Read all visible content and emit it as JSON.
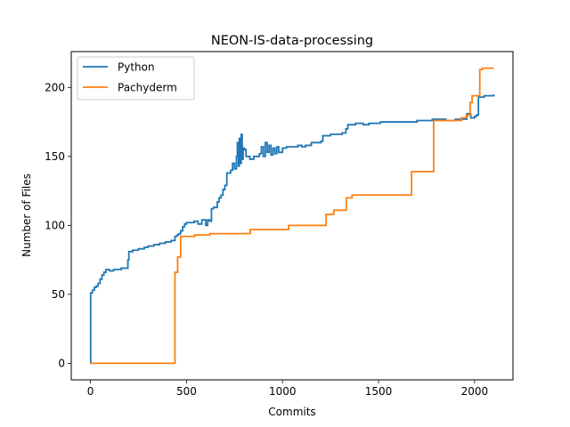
{
  "chart_data": {
    "type": "line",
    "title": "NEON-IS-data-processing",
    "xlabel": "Commits",
    "ylabel": "Number of Files",
    "xlim": [
      -100,
      2200
    ],
    "ylim": [
      -12,
      226
    ],
    "xticks": [
      0,
      500,
      1000,
      1500,
      2000
    ],
    "yticks": [
      0,
      50,
      100,
      150,
      200
    ],
    "grid": false,
    "legend_position": "upper-left",
    "series": [
      {
        "name": "Python",
        "color": "#1f77b4",
        "step": true,
        "points": [
          [
            0,
            0
          ],
          [
            1,
            51
          ],
          [
            10,
            53
          ],
          [
            20,
            55
          ],
          [
            30,
            56
          ],
          [
            40,
            58
          ],
          [
            50,
            61
          ],
          [
            60,
            64
          ],
          [
            70,
            66
          ],
          [
            80,
            68
          ],
          [
            100,
            67
          ],
          [
            120,
            68
          ],
          [
            140,
            68
          ],
          [
            160,
            69
          ],
          [
            180,
            69
          ],
          [
            195,
            75
          ],
          [
            200,
            81
          ],
          [
            220,
            82
          ],
          [
            250,
            83
          ],
          [
            280,
            84
          ],
          [
            300,
            85
          ],
          [
            330,
            86
          ],
          [
            360,
            87
          ],
          [
            390,
            88
          ],
          [
            410,
            88
          ],
          [
            420,
            89
          ],
          [
            430,
            89
          ],
          [
            440,
            92
          ],
          [
            450,
            93
          ],
          [
            460,
            94
          ],
          [
            470,
            96
          ],
          [
            480,
            99
          ],
          [
            490,
            101
          ],
          [
            500,
            102
          ],
          [
            520,
            102
          ],
          [
            540,
            103
          ],
          [
            560,
            101
          ],
          [
            580,
            104
          ],
          [
            600,
            100
          ],
          [
            610,
            104
          ],
          [
            620,
            103
          ],
          [
            630,
            112
          ],
          [
            640,
            113
          ],
          [
            660,
            117
          ],
          [
            670,
            120
          ],
          [
            680,
            122
          ],
          [
            690,
            126
          ],
          [
            700,
            129
          ],
          [
            710,
            138
          ],
          [
            730,
            140
          ],
          [
            740,
            145
          ],
          [
            750,
            141
          ],
          [
            760,
            150
          ],
          [
            765,
            160
          ],
          [
            770,
            143
          ],
          [
            775,
            163
          ],
          [
            780,
            145
          ],
          [
            785,
            166
          ],
          [
            790,
            148
          ],
          [
            795,
            156
          ],
          [
            800,
            155
          ],
          [
            810,
            150
          ],
          [
            830,
            148
          ],
          [
            850,
            150
          ],
          [
            870,
            150
          ],
          [
            880,
            152
          ],
          [
            890,
            157
          ],
          [
            900,
            150
          ],
          [
            910,
            160
          ],
          [
            920,
            153
          ],
          [
            930,
            158
          ],
          [
            940,
            151
          ],
          [
            950,
            156
          ],
          [
            960,
            152
          ],
          [
            970,
            157
          ],
          [
            980,
            153
          ],
          [
            1000,
            156
          ],
          [
            1020,
            157
          ],
          [
            1050,
            157
          ],
          [
            1080,
            158
          ],
          [
            1100,
            157
          ],
          [
            1120,
            158
          ],
          [
            1150,
            160
          ],
          [
            1180,
            160
          ],
          [
            1200,
            161
          ],
          [
            1210,
            165
          ],
          [
            1250,
            166
          ],
          [
            1290,
            166
          ],
          [
            1310,
            167
          ],
          [
            1330,
            170
          ],
          [
            1340,
            173
          ],
          [
            1380,
            174
          ],
          [
            1420,
            173
          ],
          [
            1450,
            174
          ],
          [
            1480,
            174
          ],
          [
            1510,
            175
          ],
          [
            1550,
            175
          ],
          [
            1600,
            175
          ],
          [
            1650,
            175
          ],
          [
            1700,
            176
          ],
          [
            1740,
            176
          ],
          [
            1780,
            177
          ],
          [
            1850,
            176
          ],
          [
            1900,
            177
          ],
          [
            1950,
            177
          ],
          [
            1960,
            181
          ],
          [
            1980,
            178
          ],
          [
            2000,
            179
          ],
          [
            2010,
            180
          ],
          [
            2020,
            193
          ],
          [
            2050,
            194
          ],
          [
            2080,
            194
          ],
          [
            2100,
            195
          ]
        ]
      },
      {
        "name": "Pachyderm",
        "color": "#ff7f0e",
        "step": true,
        "points": [
          [
            0,
            0
          ],
          [
            438,
            0
          ],
          [
            440,
            66
          ],
          [
            452,
            66
          ],
          [
            454,
            77
          ],
          [
            468,
            77
          ],
          [
            470,
            92
          ],
          [
            540,
            92
          ],
          [
            542,
            93
          ],
          [
            620,
            93
          ],
          [
            622,
            94
          ],
          [
            830,
            94
          ],
          [
            832,
            97
          ],
          [
            1030,
            97
          ],
          [
            1032,
            100
          ],
          [
            1225,
            100
          ],
          [
            1227,
            108
          ],
          [
            1265,
            108
          ],
          [
            1267,
            111
          ],
          [
            1330,
            111
          ],
          [
            1332,
            120
          ],
          [
            1360,
            120
          ],
          [
            1362,
            122
          ],
          [
            1670,
            122
          ],
          [
            1672,
            139
          ],
          [
            1785,
            139
          ],
          [
            1787,
            176
          ],
          [
            1930,
            176
          ],
          [
            1932,
            178
          ],
          [
            1955,
            178
          ],
          [
            1957,
            180
          ],
          [
            1975,
            180
          ],
          [
            1977,
            189
          ],
          [
            1985,
            189
          ],
          [
            1987,
            194
          ],
          [
            2025,
            194
          ],
          [
            2027,
            213
          ],
          [
            2040,
            214
          ],
          [
            2100,
            214
          ]
        ]
      }
    ]
  }
}
